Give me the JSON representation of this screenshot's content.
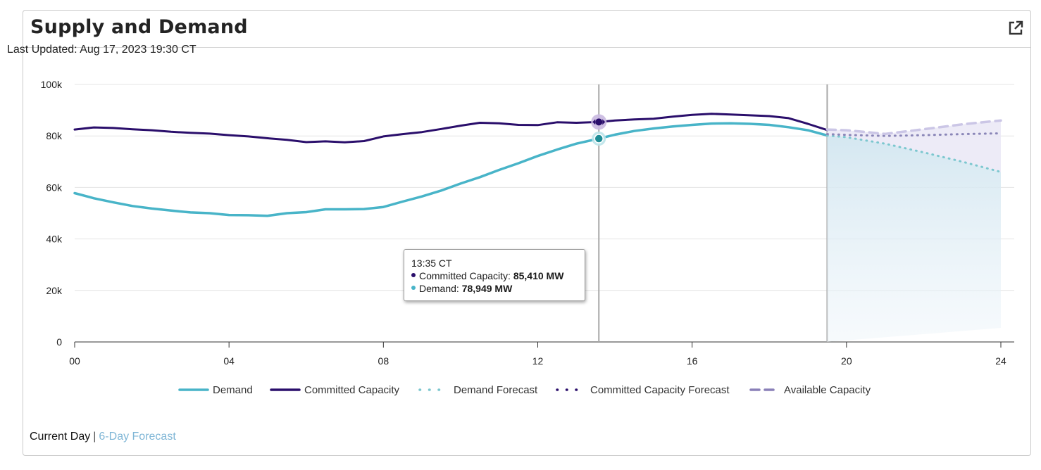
{
  "card": {
    "title": "Supply and Demand",
    "last_updated": "Last Updated: Aug 17, 2023 19:30 CT",
    "external_link_icon": "external-link-icon"
  },
  "tooltip": {
    "time": "13:35 CT",
    "rows": [
      {
        "label": "Committed Capacity: ",
        "value": "85,410 MW",
        "color": "#2a0e6b"
      },
      {
        "label": "Demand: ",
        "value": "78,949 MW",
        "color": "#48b4c8"
      }
    ]
  },
  "footer": {
    "current_day": "Current Day",
    "separator": "|",
    "forecast_link": "6-Day Forecast"
  },
  "chart_data": {
    "type": "line",
    "title": "",
    "xlabel": "",
    "ylabel": "",
    "xlim": [
      0,
      24
    ],
    "ylim": [
      0,
      100000
    ],
    "x_ticks": [
      "00",
      "04",
      "08",
      "12",
      "16",
      "20",
      "24"
    ],
    "y_ticks": [
      "0",
      "20k",
      "40k",
      "60k",
      "80k",
      "100k"
    ],
    "grid": true,
    "legend_position": "bottom",
    "crosshair_hour": 13.583,
    "now_hour": 19.5,
    "colors": {
      "demand": "#48b4c8",
      "committed": "#2a0e6b",
      "demand_forecast": "#7cc7cf",
      "committed_forecast": "#8a86b8",
      "available": "#cbc6e6",
      "fill": "#dcebf3"
    },
    "series": [
      {
        "name": "Demand",
        "style": "solid",
        "x": [
          0,
          0.5,
          1,
          1.5,
          2,
          2.5,
          3,
          3.5,
          4,
          4.5,
          5,
          5.5,
          6,
          6.5,
          7,
          7.5,
          8,
          8.5,
          9,
          9.5,
          10,
          10.5,
          11,
          11.5,
          12,
          12.5,
          13,
          13.583,
          14,
          14.5,
          15,
          15.5,
          16,
          16.5,
          17,
          17.5,
          18,
          18.5,
          19,
          19.5
        ],
        "values": [
          57800,
          55800,
          54200,
          52800,
          51800,
          51000,
          50300,
          50000,
          49300,
          49200,
          49000,
          50000,
          50400,
          51500,
          51500,
          51600,
          52400,
          54500,
          56500,
          58800,
          61500,
          64000,
          66800,
          69400,
          72200,
          74700,
          77000,
          78949,
          80500,
          81900,
          82900,
          83700,
          84300,
          84800,
          84900,
          84700,
          84300,
          83400,
          82200,
          80200
        ]
      },
      {
        "name": "Committed Capacity",
        "style": "solid",
        "x": [
          0,
          0.5,
          1,
          1.5,
          2,
          2.5,
          3,
          3.5,
          4,
          4.5,
          5,
          5.5,
          6,
          6.5,
          7,
          7.5,
          8,
          8.5,
          9,
          9.5,
          10,
          10.5,
          11,
          11.5,
          12,
          12.5,
          13,
          13.583,
          14,
          14.5,
          15,
          15.5,
          16,
          16.5,
          17,
          17.5,
          18,
          18.5,
          19,
          19.5
        ],
        "values": [
          82500,
          83300,
          83100,
          82600,
          82200,
          81600,
          81200,
          80900,
          80300,
          79800,
          79100,
          78500,
          77600,
          77900,
          77500,
          78000,
          79800,
          80700,
          81500,
          82700,
          84000,
          85100,
          84900,
          84300,
          84200,
          85300,
          85100,
          85410,
          86000,
          86400,
          86700,
          87500,
          88200,
          88600,
          88300,
          88000,
          87700,
          86900,
          84700,
          82300
        ]
      },
      {
        "name": "Demand Forecast",
        "style": "dotted",
        "x": [
          19.5,
          20,
          21,
          22,
          23,
          24
        ],
        "values": [
          80200,
          79500,
          77000,
          73600,
          70000,
          66000
        ]
      },
      {
        "name": "Committed Capacity Forecast",
        "style": "dotted",
        "x": [
          19.5,
          20,
          21,
          22,
          23,
          24
        ],
        "values": [
          80700,
          80400,
          80000,
          80300,
          80700,
          81000
        ]
      },
      {
        "name": "Available Capacity",
        "style": "dashed",
        "x": [
          19.5,
          20,
          21,
          22,
          23,
          24
        ],
        "values": [
          82500,
          82200,
          80800,
          82600,
          84500,
          86000
        ]
      }
    ]
  }
}
